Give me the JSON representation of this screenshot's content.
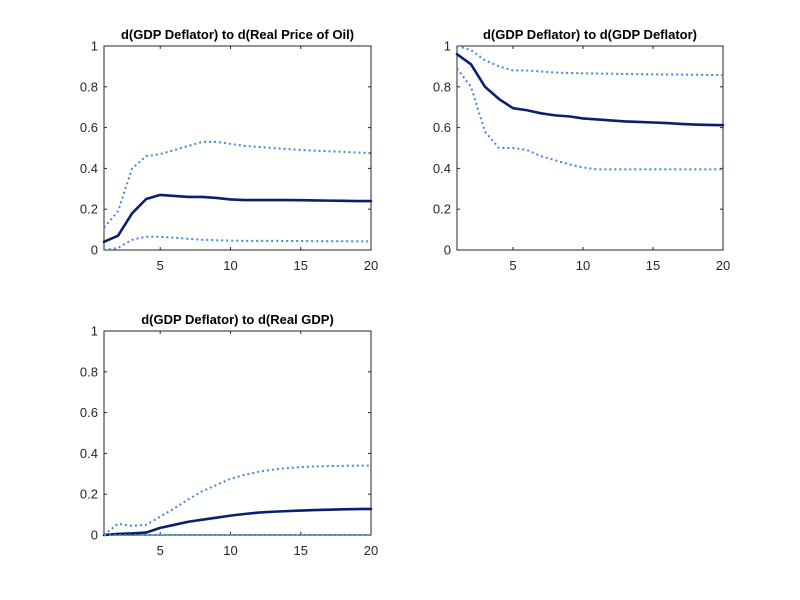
{
  "colors": {
    "median": "#0a1f6e",
    "band": "#3f87e0",
    "axis": "#262626"
  },
  "chart_data": [
    {
      "type": "line",
      "title": "d(GDP Deflator) to d(Real Price of Oil)",
      "xlabel": "",
      "ylabel": "",
      "xlim": [
        1,
        20
      ],
      "ylim": [
        0,
        1
      ],
      "x_ticks": [
        5,
        10,
        15,
        20
      ],
      "y_ticks": [
        0,
        0.2,
        0.4,
        0.6,
        0.8,
        1
      ],
      "x_tick_labels": [
        "5",
        "10",
        "15",
        "20"
      ],
      "y_tick_labels": [
        "0",
        "0.2",
        "0.4",
        "0.6",
        "0.8",
        "1"
      ],
      "grid": false,
      "x": [
        1,
        2,
        3,
        4,
        5,
        6,
        7,
        8,
        9,
        10,
        11,
        12,
        13,
        14,
        15,
        16,
        17,
        18,
        19,
        20
      ],
      "series": [
        {
          "role": "median",
          "values": [
            0.04,
            0.07,
            0.18,
            0.25,
            0.27,
            0.265,
            0.26,
            0.26,
            0.255,
            0.248,
            0.245,
            0.245,
            0.245,
            0.245,
            0.244,
            0.243,
            0.242,
            0.241,
            0.24,
            0.24
          ]
        },
        {
          "role": "upper",
          "values": [
            0.11,
            0.19,
            0.4,
            0.46,
            0.47,
            0.49,
            0.51,
            0.53,
            0.53,
            0.52,
            0.51,
            0.505,
            0.5,
            0.495,
            0.49,
            0.487,
            0.484,
            0.481,
            0.478,
            0.475
          ]
        },
        {
          "role": "lower",
          "values": [
            0.0,
            0.01,
            0.05,
            0.065,
            0.065,
            0.06,
            0.055,
            0.05,
            0.048,
            0.046,
            0.045,
            0.045,
            0.045,
            0.044,
            0.044,
            0.043,
            0.043,
            0.043,
            0.042,
            0.042
          ]
        }
      ]
    },
    {
      "type": "line",
      "title": "d(GDP Deflator) to d(GDP Deflator)",
      "xlabel": "",
      "ylabel": "",
      "xlim": [
        1,
        20
      ],
      "ylim": [
        0,
        1
      ],
      "x_ticks": [
        5,
        10,
        15,
        20
      ],
      "y_ticks": [
        0,
        0.2,
        0.4,
        0.6,
        0.8,
        1
      ],
      "x_tick_labels": [
        "5",
        "10",
        "15",
        "20"
      ],
      "y_tick_labels": [
        "0",
        "0.2",
        "0.4",
        "0.6",
        "0.8",
        "1"
      ],
      "grid": false,
      "x": [
        1,
        2,
        3,
        4,
        5,
        6,
        7,
        8,
        9,
        10,
        11,
        12,
        13,
        14,
        15,
        16,
        17,
        18,
        19,
        20
      ],
      "series": [
        {
          "role": "median",
          "values": [
            0.96,
            0.91,
            0.8,
            0.74,
            0.695,
            0.685,
            0.67,
            0.66,
            0.655,
            0.645,
            0.64,
            0.635,
            0.63,
            0.628,
            0.625,
            0.622,
            0.618,
            0.615,
            0.613,
            0.612
          ]
        },
        {
          "role": "upper",
          "values": [
            1.0,
            0.98,
            0.93,
            0.9,
            0.88,
            0.88,
            0.875,
            0.87,
            0.868,
            0.866,
            0.865,
            0.864,
            0.863,
            0.862,
            0.861,
            0.86,
            0.86,
            0.859,
            0.858,
            0.858
          ]
        },
        {
          "role": "lower",
          "values": [
            0.89,
            0.8,
            0.58,
            0.5,
            0.5,
            0.49,
            0.46,
            0.44,
            0.42,
            0.405,
            0.395,
            0.395,
            0.395,
            0.395,
            0.395,
            0.395,
            0.395,
            0.395,
            0.395,
            0.395
          ]
        }
      ]
    },
    {
      "type": "line",
      "title": "d(GDP Deflator) to d(Real GDP)",
      "xlabel": "",
      "ylabel": "",
      "xlim": [
        1,
        20
      ],
      "ylim": [
        0,
        1
      ],
      "x_ticks": [
        5,
        10,
        15,
        20
      ],
      "y_ticks": [
        0,
        0.2,
        0.4,
        0.6,
        0.8,
        1
      ],
      "x_tick_labels": [
        "5",
        "10",
        "15",
        "20"
      ],
      "y_tick_labels": [
        "0",
        "0.2",
        "0.4",
        "0.6",
        "0.8",
        "1"
      ],
      "grid": false,
      "x": [
        1,
        2,
        3,
        4,
        5,
        6,
        7,
        8,
        9,
        10,
        11,
        12,
        13,
        14,
        15,
        16,
        17,
        18,
        19,
        20
      ],
      "series": [
        {
          "role": "median",
          "values": [
            0.0,
            0.005,
            0.008,
            0.012,
            0.035,
            0.05,
            0.065,
            0.075,
            0.085,
            0.095,
            0.103,
            0.11,
            0.114,
            0.117,
            0.12,
            0.122,
            0.124,
            0.126,
            0.127,
            0.128
          ]
        },
        {
          "role": "upper",
          "values": [
            0.0,
            0.055,
            0.045,
            0.05,
            0.09,
            0.13,
            0.175,
            0.215,
            0.245,
            0.275,
            0.295,
            0.31,
            0.32,
            0.328,
            0.333,
            0.336,
            0.338,
            0.339,
            0.34,
            0.34
          ]
        },
        {
          "role": "lower",
          "values": [
            0.0,
            0.0,
            0.0,
            0.0,
            0.0,
            0.0,
            0.0,
            0.0,
            0.0,
            0.0,
            0.0,
            0.0,
            0.0,
            0.0,
            0.0,
            0.0,
            0.0,
            0.0,
            0.0,
            0.0
          ]
        }
      ]
    }
  ]
}
